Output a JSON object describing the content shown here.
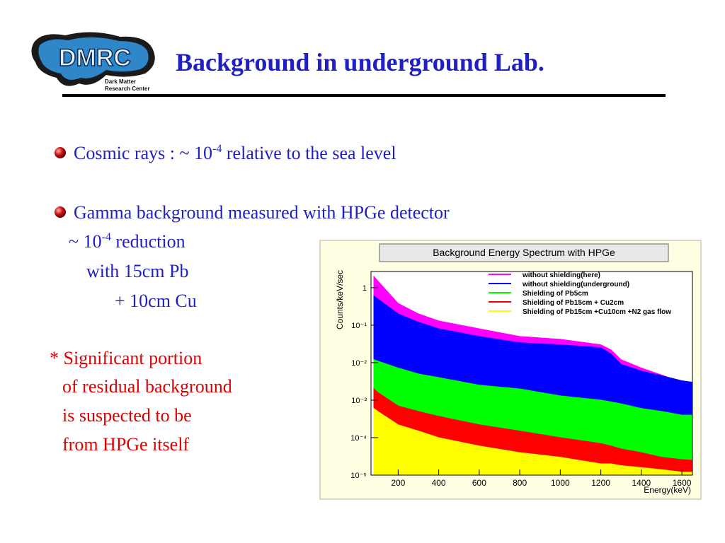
{
  "header": {
    "logo": {
      "mark": "DMRC",
      "line1": "Dark Matter",
      "line2": "Research Center"
    },
    "title": "Background in underground Lab."
  },
  "bullets": [
    {
      "parts": [
        "Cosmic rays : ~ 10",
        "-4",
        " relative to the sea level"
      ]
    },
    {
      "text": "Gamma background measured with HPGe detector",
      "sub": [
        {
          "parts": [
            "~ 10",
            "-4",
            " reduction"
          ]
        },
        {
          "text": "with 15cm Pb"
        },
        {
          "text": "+ 10cm Cu"
        }
      ]
    }
  ],
  "note": [
    "* Significant portion",
    "of residual background",
    "is suspected to be",
    "from HPGe itself"
  ],
  "chart_data": {
    "type": "area",
    "title": "Background Energy Spectrum with HPGe",
    "x_label": "Energy(keV)",
    "y_label": "Counts/keV/sec",
    "y_log": true,
    "legend": "top-right",
    "x": [
      80,
      100,
      200,
      300,
      400,
      600,
      800,
      1000,
      1200,
      1250,
      1300,
      1400,
      1500,
      1600,
      1650
    ],
    "series": [
      {
        "name": "without shielding(here)",
        "color": "#ff00ff",
        "values": [
          2,
          1.5,
          0.38,
          0.2,
          0.13,
          0.08,
          0.05,
          0.042,
          0.03,
          0.022,
          0.012,
          0.0072,
          0.0047,
          0.003,
          0.0025
        ]
      },
      {
        "name": "without shielding(underground)",
        "color": "#0000ff",
        "values": [
          0.6,
          0.5,
          0.2,
          0.12,
          0.08,
          0.05,
          0.034,
          0.03,
          0.025,
          0.017,
          0.009,
          0.006,
          0.0045,
          0.0033,
          0.003
        ]
      },
      {
        "name": "Shielding of Pb5cm",
        "color": "#00ff00",
        "values": [
          0.012,
          0.011,
          0.0072,
          0.005,
          0.004,
          0.0025,
          0.002,
          0.0013,
          0.001,
          0.0009,
          0.0008,
          0.0006,
          0.0005,
          0.0004,
          0.0004
        ]
      },
      {
        "name": "Shielding of Pb15cm + Cu2cm",
        "color": "#ff0000",
        "values": [
          0.002,
          0.0016,
          0.0007,
          0.0005,
          0.00037,
          0.00022,
          0.00015,
          0.0001,
          7e-05,
          6e-05,
          5e-05,
          4e-05,
          3e-05,
          2.6e-05,
          2.5e-05
        ]
      },
      {
        "name": "Shielding of Pb15cm +Cu10cm +N2 gas flow",
        "color": "#ffff00",
        "values": [
          0.0006,
          0.0005,
          0.00022,
          0.00015,
          0.0001,
          6e-05,
          4e-05,
          3e-05,
          2e-05,
          2e-05,
          1.8e-05,
          1.6e-05,
          1.4e-05,
          1.2e-05,
          1.2e-05
        ]
      }
    ],
    "xlim": [
      66,
      1652
    ],
    "ylim": [
      1e-05,
      2.7
    ],
    "xticks": [
      200,
      400,
      600,
      800,
      1000,
      1200,
      1400,
      1600
    ],
    "yticks": [
      {
        "value": 1e-05,
        "label": "10⁻⁵"
      },
      {
        "value": 0.0001,
        "label": "10⁻⁴"
      },
      {
        "value": 0.001,
        "label": "10⁻³"
      },
      {
        "value": 0.01,
        "label": "10⁻²"
      },
      {
        "value": 0.1,
        "label": "10⁻¹"
      },
      1
    ]
  }
}
